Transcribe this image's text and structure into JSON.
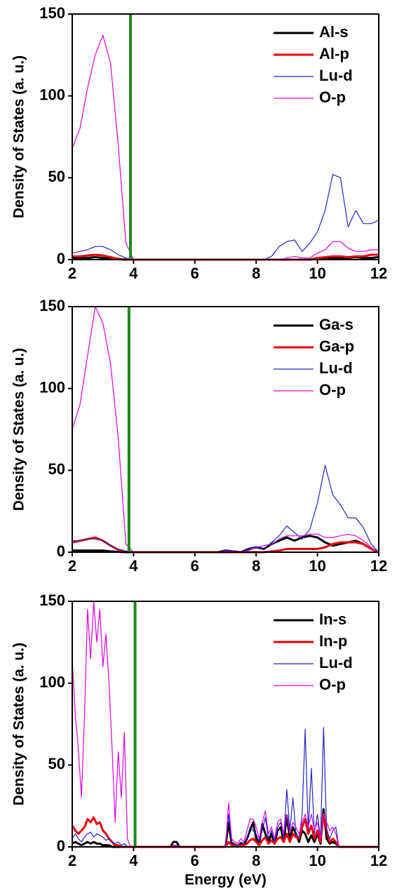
{
  "chart_data": [
    {
      "type": "line",
      "ylabel": "Density of States (a. u.)",
      "xlim": [
        2,
        12
      ],
      "xticks": [
        2,
        4,
        6,
        8,
        10,
        12
      ],
      "ylim": [
        0,
        150
      ],
      "yticks": [
        0,
        50,
        100,
        150
      ],
      "legend": "upper right",
      "vline": {
        "x": 3.9,
        "color": "#1a8a1a"
      },
      "x": [
        2,
        2.25,
        2.5,
        2.75,
        3,
        3.25,
        3.5,
        3.75,
        4,
        4.25,
        4.5,
        4.75,
        5,
        5.25,
        5.5,
        5.75,
        6,
        6.25,
        6.5,
        6.75,
        7,
        7.25,
        7.5,
        7.75,
        8,
        8.25,
        8.5,
        8.75,
        9,
        9.25,
        9.5,
        9.75,
        10,
        10.25,
        10.5,
        10.75,
        11,
        11.25,
        11.5,
        11.75,
        12
      ],
      "series": [
        {
          "name": "Al-s",
          "color": "#000000",
          "values": [
            1,
            1,
            1,
            1.5,
            1,
            0.5,
            0.2,
            0,
            0,
            0,
            0,
            0,
            0,
            0,
            0,
            0,
            0,
            0,
            0,
            0,
            0,
            0,
            0,
            0,
            0,
            0,
            0,
            0,
            0,
            0,
            0,
            0,
            0.5,
            1,
            1,
            1,
            1,
            1.5,
            1,
            1,
            1.5
          ]
        },
        {
          "name": "Al-p",
          "color": "#e8000b",
          "values": [
            2,
            2,
            2.5,
            3,
            2.5,
            1.5,
            0.5,
            0.1,
            0,
            0,
            0,
            0,
            0,
            0,
            0,
            0,
            0,
            0,
            0,
            0,
            0,
            0,
            0,
            0,
            0,
            0,
            0,
            0,
            0,
            0,
            0,
            0,
            1,
            1.5,
            2,
            2,
            1.5,
            2,
            2,
            3,
            3
          ]
        },
        {
          "name": "Lu-d",
          "color": "#2424c8",
          "values": [
            4,
            5,
            6,
            8,
            8,
            6,
            3,
            1,
            0,
            0,
            0,
            0,
            0,
            0,
            0,
            0,
            0,
            0,
            0,
            0,
            0,
            0,
            0,
            0,
            0,
            0,
            2,
            8,
            11,
            12,
            5,
            10,
            17,
            30,
            52,
            50,
            20,
            30,
            22,
            22,
            24
          ]
        },
        {
          "name": "O-p",
          "color": "#e000e0",
          "values": [
            68,
            80,
            105,
            125,
            137,
            120,
            70,
            10,
            0,
            0,
            0,
            0,
            0,
            0,
            0,
            0,
            0,
            0,
            0,
            0,
            0,
            0,
            0,
            0,
            0,
            0,
            0,
            0,
            1,
            2,
            1,
            1,
            4,
            6,
            11,
            11,
            7,
            5,
            5,
            6,
            6
          ]
        }
      ]
    },
    {
      "type": "line",
      "ylabel": "Density of States (a. u.)",
      "xlim": [
        2,
        12
      ],
      "xticks": [
        2,
        4,
        6,
        8,
        10,
        12
      ],
      "ylim": [
        0,
        150
      ],
      "yticks": [
        0,
        50,
        100,
        150
      ],
      "legend": "upper right",
      "vline": {
        "x": 3.85,
        "color": "#1a8a1a"
      },
      "x": [
        2,
        2.25,
        2.5,
        2.75,
        3,
        3.25,
        3.5,
        3.75,
        4,
        4.25,
        4.5,
        4.75,
        5,
        5.25,
        5.5,
        5.75,
        6,
        6.25,
        6.5,
        6.75,
        7,
        7.25,
        7.5,
        7.75,
        8,
        8.25,
        8.5,
        8.75,
        9,
        9.25,
        9.5,
        9.75,
        10,
        10.25,
        10.5,
        10.75,
        11,
        11.25,
        11.5,
        11.75,
        12
      ],
      "series": [
        {
          "name": "Ga-s",
          "color": "#000000",
          "values": [
            1,
            1,
            1,
            1,
            1,
            0.5,
            0.2,
            0,
            0,
            0,
            0,
            0,
            0,
            0,
            0,
            0,
            0,
            0,
            0,
            0,
            1,
            0.5,
            0,
            2,
            3,
            2,
            5,
            7,
            9,
            7,
            9,
            10,
            9,
            6,
            4,
            5,
            6,
            7,
            5,
            2,
            0
          ]
        },
        {
          "name": "Ga-p",
          "color": "#e8000b",
          "values": [
            6,
            7,
            8,
            9,
            7,
            4,
            1.5,
            0.3,
            0,
            0,
            0,
            0,
            0,
            0,
            0,
            0,
            0,
            0,
            0,
            0,
            0,
            0,
            0,
            0,
            0,
            0,
            0.5,
            1,
            2,
            2,
            2,
            2,
            2,
            3,
            5,
            6,
            6,
            6,
            5,
            2,
            0
          ]
        },
        {
          "name": "Lu-d",
          "color": "#2424c8",
          "values": [
            7,
            7,
            8,
            8,
            7,
            4,
            2,
            0.5,
            0,
            0,
            0,
            0,
            0,
            0,
            0,
            0,
            0,
            0,
            0,
            0,
            1,
            0.5,
            0,
            2,
            3,
            2,
            6,
            10,
            16,
            12,
            8,
            14,
            30,
            53,
            35,
            29,
            21,
            21,
            15,
            5,
            0
          ]
        },
        {
          "name": "O-p",
          "color": "#e000e0",
          "values": [
            75,
            90,
            120,
            150,
            140,
            115,
            70,
            5,
            0,
            0,
            0,
            0,
            0,
            0,
            0,
            0,
            0,
            0,
            0,
            0,
            0.5,
            0.5,
            0,
            1,
            3,
            4,
            5,
            8,
            10,
            10,
            10,
            11,
            11,
            9,
            9,
            10,
            11,
            10,
            7,
            3,
            0
          ]
        }
      ]
    },
    {
      "type": "line",
      "ylabel": "Density of States (a. u.)",
      "xlabel": "Energy (eV)",
      "xlim": [
        2,
        12
      ],
      "xticks": [
        2,
        4,
        6,
        8,
        10,
        12
      ],
      "ylim": [
        0,
        150
      ],
      "yticks": [
        0,
        50,
        100,
        150
      ],
      "legend": "upper right",
      "vline": {
        "x": 4.05,
        "color": "#1a8a1a"
      },
      "x": [
        2,
        2.1,
        2.2,
        2.3,
        2.4,
        2.5,
        2.6,
        2.7,
        2.8,
        2.9,
        3,
        3.1,
        3.2,
        3.3,
        3.4,
        3.5,
        3.6,
        3.7,
        3.8,
        3.9,
        4,
        5.2,
        5.3,
        5.4,
        5.5,
        7,
        7.1,
        7.2,
        7.3,
        7.4,
        7.5,
        7.6,
        7.7,
        7.8,
        7.9,
        8,
        8.1,
        8.2,
        8.3,
        8.4,
        8.5,
        8.6,
        8.7,
        8.8,
        8.9,
        9,
        9.1,
        9.2,
        9.3,
        9.4,
        9.5,
        9.6,
        9.7,
        9.8,
        9.9,
        10,
        10.1,
        10.2,
        10.3,
        10.4,
        10.5,
        10.6,
        10.7,
        10.8,
        12
      ],
      "series": [
        {
          "name": "In-s",
          "color": "#000000",
          "values": [
            2,
            3,
            2,
            1,
            2,
            3,
            2,
            3,
            2,
            2,
            1,
            1,
            1,
            0,
            0,
            0,
            0,
            0,
            0,
            0,
            0,
            0,
            3,
            3,
            0,
            0,
            15,
            2,
            1,
            0,
            2,
            1,
            5,
            10,
            15,
            5,
            2,
            14,
            8,
            3,
            8,
            2,
            10,
            12,
            3,
            19,
            5,
            12,
            8,
            3,
            10,
            8,
            3,
            7,
            3,
            8,
            2,
            23,
            5,
            2,
            3,
            2,
            0,
            0,
            0
          ]
        },
        {
          "name": "In-p",
          "color": "#e8000b",
          "values": [
            13,
            10,
            8,
            10,
            12,
            17,
            15,
            18,
            14,
            15,
            10,
            8,
            5,
            3,
            1,
            1,
            0,
            0,
            0,
            0,
            0,
            0,
            0,
            0,
            0,
            0,
            3,
            1,
            1,
            0,
            1,
            1,
            2,
            4,
            5,
            3,
            1,
            4,
            6,
            2,
            4,
            2,
            5,
            6,
            3,
            8,
            3,
            8,
            6,
            5,
            12,
            17,
            8,
            13,
            5,
            10,
            3,
            20,
            10,
            3,
            5,
            3,
            0,
            0,
            0
          ]
        },
        {
          "name": "Lu-d",
          "color": "#2424c8",
          "values": [
            5,
            8,
            5,
            3,
            6,
            8,
            9,
            6,
            8,
            7,
            6,
            4,
            5,
            3,
            2,
            3,
            1,
            2,
            0,
            0,
            0,
            0,
            1,
            1,
            0,
            0,
            20,
            3,
            2,
            1,
            3,
            2,
            5,
            12,
            10,
            8,
            3,
            10,
            18,
            5,
            10,
            3,
            12,
            15,
            5,
            35,
            10,
            30,
            8,
            5,
            20,
            72,
            10,
            48,
            8,
            20,
            5,
            73,
            10,
            5,
            10,
            12,
            0,
            0,
            0
          ]
        },
        {
          "name": "O-p",
          "color": "#e000e0",
          "values": [
            115,
            80,
            60,
            30,
            80,
            145,
            115,
            150,
            125,
            145,
            110,
            130,
            100,
            60,
            15,
            58,
            30,
            70,
            5,
            0,
            0,
            0,
            1,
            1,
            0,
            0,
            27,
            5,
            3,
            2,
            5,
            3,
            10,
            17,
            17,
            12,
            5,
            15,
            22,
            8,
            12,
            5,
            15,
            17,
            8,
            20,
            8,
            15,
            12,
            8,
            15,
            20,
            12,
            20,
            10,
            15,
            5,
            20,
            15,
            10,
            12,
            8,
            0,
            0,
            0
          ]
        }
      ]
    }
  ]
}
